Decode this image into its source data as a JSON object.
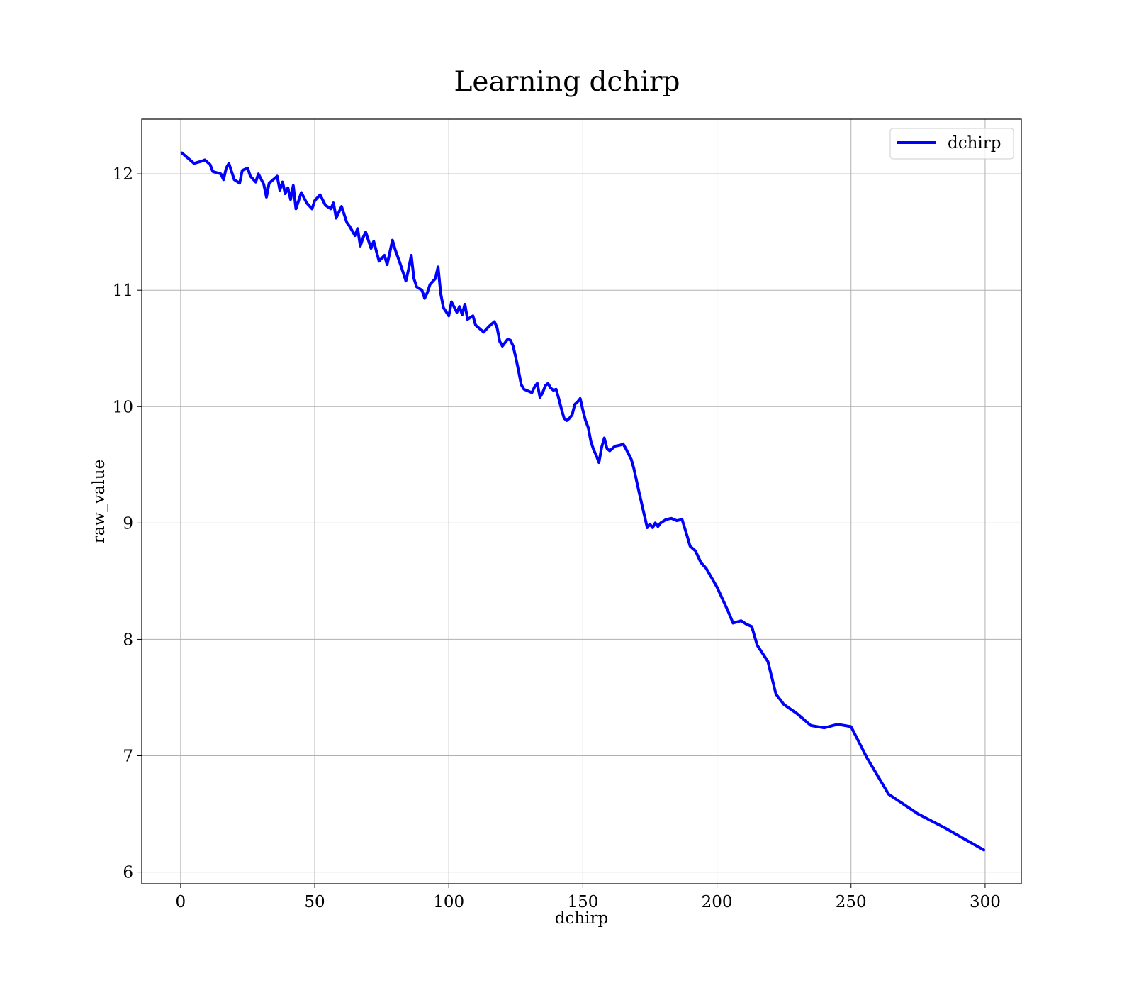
{
  "chart_data": {
    "type": "line",
    "title": "Learning dchirp",
    "xlabel": "dchirp",
    "ylabel": "raw_value",
    "xlim": [
      -14.5,
      313.5
    ],
    "ylim": [
      5.9,
      12.47
    ],
    "xticks": [
      0,
      50,
      100,
      150,
      200,
      250,
      300
    ],
    "yticks": [
      6,
      7,
      8,
      9,
      10,
      11,
      12
    ],
    "grid": true,
    "legend": {
      "position": "top-right",
      "entries": [
        "dchirp"
      ]
    },
    "series": [
      {
        "name": "dchirp",
        "color": "#0000ff",
        "x": [
          0.5,
          5,
          8,
          9,
          11,
          12,
          15,
          16,
          17,
          18,
          20,
          22,
          23,
          25,
          26,
          28,
          29,
          31,
          32,
          33,
          36,
          37,
          38,
          39,
          40,
          41,
          42,
          43,
          45,
          47,
          49,
          50,
          52,
          54,
          56,
          57,
          58,
          59,
          60,
          62,
          63,
          65,
          66,
          67,
          68,
          69,
          71,
          72,
          74,
          76,
          77,
          79,
          80,
          82,
          84,
          85,
          86,
          87,
          88,
          90,
          91,
          92,
          93,
          95,
          96,
          97,
          98,
          100,
          101,
          103,
          104,
          105,
          106,
          107,
          109,
          110,
          112,
          113,
          115,
          117,
          118,
          119,
          120,
          121,
          122,
          123,
          124,
          125,
          126,
          127,
          128,
          130,
          131,
          132,
          133,
          134,
          135,
          136,
          137,
          138,
          139,
          140,
          141,
          142,
          143,
          144,
          145,
          146,
          147,
          148,
          149,
          150,
          151,
          152,
          153,
          154,
          155,
          156,
          157,
          158,
          159,
          160,
          162,
          164,
          165,
          166,
          168,
          169,
          171,
          174,
          175,
          176,
          177,
          178,
          179,
          181,
          183,
          184,
          185,
          187,
          189,
          190,
          192,
          194,
          196,
          198,
          200,
          202,
          204,
          206,
          209,
          211,
          213,
          215,
          219,
          222,
          225,
          230,
          235,
          240,
          245,
          250,
          256,
          264,
          275,
          285,
          299.5
        ],
        "values": [
          12.18,
          12.09,
          12.11,
          12.12,
          12.08,
          12.02,
          12.0,
          11.95,
          12.05,
          12.09,
          11.95,
          11.92,
          12.03,
          12.05,
          11.98,
          11.93,
          12.0,
          11.91,
          11.8,
          11.92,
          11.98,
          11.86,
          11.93,
          11.83,
          11.88,
          11.78,
          11.9,
          11.7,
          11.84,
          11.75,
          11.7,
          11.77,
          11.82,
          11.73,
          11.7,
          11.75,
          11.62,
          11.67,
          11.72,
          11.58,
          11.55,
          11.47,
          11.53,
          11.38,
          11.45,
          11.5,
          11.36,
          11.42,
          11.25,
          11.3,
          11.22,
          11.43,
          11.35,
          11.22,
          11.08,
          11.18,
          11.3,
          11.1,
          11.03,
          11.0,
          10.93,
          10.98,
          11.05,
          11.1,
          11.2,
          10.97,
          10.85,
          10.78,
          10.9,
          10.81,
          10.86,
          10.79,
          10.88,
          10.75,
          10.78,
          10.7,
          10.66,
          10.64,
          10.69,
          10.73,
          10.68,
          10.56,
          10.52,
          10.55,
          10.58,
          10.57,
          10.52,
          10.42,
          10.31,
          10.19,
          10.15,
          10.13,
          10.12,
          10.17,
          10.2,
          10.08,
          10.12,
          10.18,
          10.2,
          10.16,
          10.14,
          10.15,
          10.07,
          9.98,
          9.9,
          9.88,
          9.9,
          9.93,
          10.02,
          10.04,
          10.07,
          9.97,
          9.88,
          9.82,
          9.7,
          9.63,
          9.58,
          9.52,
          9.65,
          9.73,
          9.64,
          9.62,
          9.66,
          9.67,
          9.68,
          9.64,
          9.55,
          9.47,
          9.26,
          8.96,
          8.99,
          8.96,
          9.0,
          8.97,
          9.0,
          9.03,
          9.04,
          9.03,
          9.02,
          9.03,
          8.88,
          8.8,
          8.76,
          8.66,
          8.61,
          8.53,
          8.45,
          8.35,
          8.25,
          8.14,
          8.16,
          8.13,
          8.11,
          7.95,
          7.81,
          7.53,
          7.44,
          7.36,
          7.26,
          7.24,
          7.27,
          7.25,
          6.98,
          6.67,
          6.5,
          6.38,
          6.19
        ]
      }
    ]
  }
}
